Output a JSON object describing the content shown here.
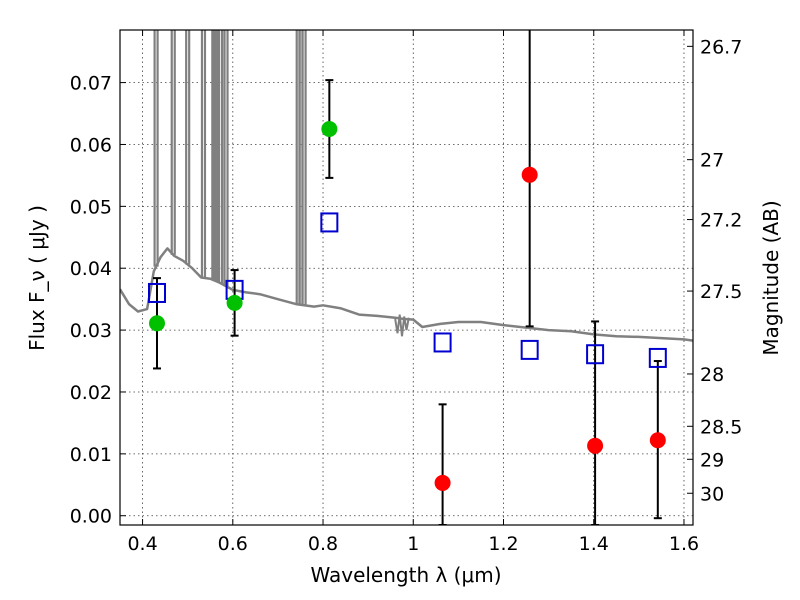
{
  "chart_data": {
    "type": "scatter",
    "xlabel": "Wavelength  λ (μm)",
    "ylabel": "Flux  F_ν  ( μJy )",
    "y2label": "Magnitude (AB)",
    "xlim": [
      0.35,
      1.62
    ],
    "ylim": [
      -0.0015,
      0.0785
    ],
    "grid": true,
    "xticks": [
      "0.4",
      "0.6",
      "0.8",
      "1",
      "1.2",
      "1.4",
      "1.6"
    ],
    "xtick_values": [
      0.4,
      0.6,
      0.8,
      1.0,
      1.2,
      1.4,
      1.6
    ],
    "yticks": [
      "0.00",
      "0.01",
      "0.02",
      "0.03",
      "0.04",
      "0.05",
      "0.06",
      "0.07"
    ],
    "ytick_values": [
      0.0,
      0.01,
      0.02,
      0.03,
      0.04,
      0.05,
      0.06,
      0.07
    ],
    "mag_ticks": [
      "26.7",
      "27",
      "27.2",
      "27.5",
      "28",
      "28.5",
      "29",
      "30"
    ],
    "mag_tick_values": [
      26.7,
      27.0,
      27.2,
      27.5,
      28.0,
      28.5,
      29.0,
      30.0
    ],
    "series": [
      {
        "marker": "circle",
        "color": "#00c000",
        "x": [
          0.432,
          0.604,
          0.814
        ],
        "y": [
          0.0311,
          0.0344,
          0.0625
        ],
        "yerr": [
          0.0073,
          0.0053,
          0.0079
        ]
      },
      {
        "marker": "circle",
        "color": "#ff0000",
        "x": [
          1.065,
          1.258,
          1.403,
          1.542
        ],
        "y": [
          0.0053,
          0.0551,
          0.0113,
          0.0122
        ],
        "yerr_low": [
          0.0068,
          0.0245,
          0.0128,
          0.0126
        ],
        "yerr_high": [
          0.0127,
          0.0245,
          0.0201,
          0.0128
        ]
      },
      {
        "marker": "open-square",
        "color": "#0000d0",
        "x": [
          0.432,
          0.604,
          0.814,
          1.065,
          1.258,
          1.403,
          1.542
        ],
        "y": [
          0.036,
          0.0365,
          0.0474,
          0.028,
          0.0268,
          0.0261,
          0.0255
        ]
      },
      {
        "marker": "line",
        "color": "#808080",
        "x": [
          0.35,
          0.37,
          0.39,
          0.41,
          0.425,
          0.44,
          0.455,
          0.47,
          0.49,
          0.51,
          0.53,
          0.55,
          0.57,
          0.6,
          0.63,
          0.66,
          0.7,
          0.74,
          0.78,
          0.8,
          0.84,
          0.88,
          0.92,
          0.96,
          0.98,
          1.0,
          1.02,
          1.06,
          1.1,
          1.15,
          1.2,
          1.25,
          1.3,
          1.35,
          1.4,
          1.45,
          1.5,
          1.55,
          1.6,
          1.62
        ],
        "y": [
          0.0366,
          0.0342,
          0.033,
          0.0334,
          0.0395,
          0.0418,
          0.0432,
          0.042,
          0.0412,
          0.04,
          0.0385,
          0.0383,
          0.0377,
          0.0365,
          0.0361,
          0.0358,
          0.035,
          0.0342,
          0.0338,
          0.034,
          0.0335,
          0.0325,
          0.0323,
          0.032,
          0.0318,
          0.0317,
          0.0305,
          0.031,
          0.0313,
          0.0313,
          0.0308,
          0.0304,
          0.03,
          0.0298,
          0.0293,
          0.029,
          0.0289,
          0.0287,
          0.0285,
          0.0283
        ],
        "emission_lines": [
          0.43,
          0.468,
          0.5,
          0.535,
          0.558,
          0.562,
          0.573,
          0.585,
          0.745,
          0.751,
          0.758
        ]
      }
    ]
  }
}
